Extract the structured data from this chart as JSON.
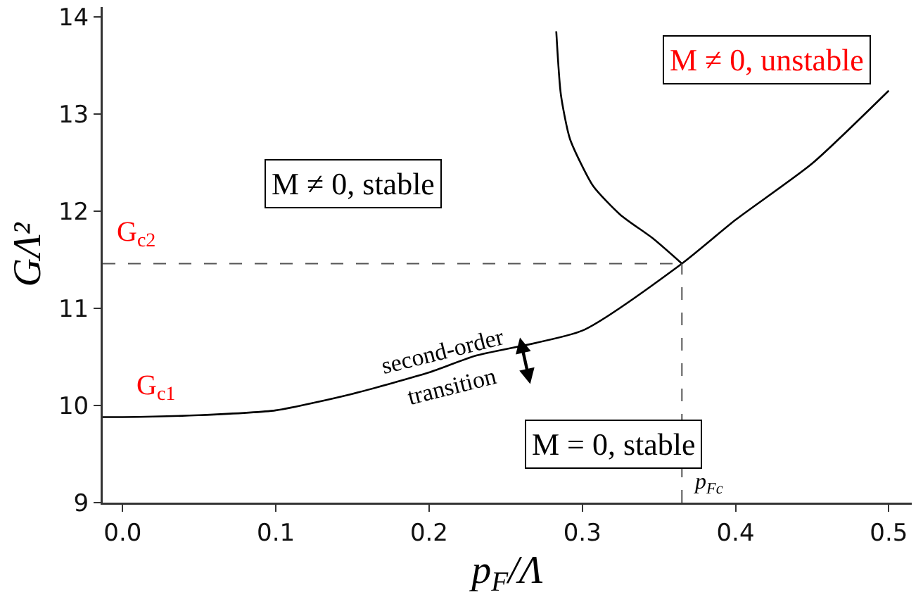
{
  "chart_data": {
    "type": "line",
    "xlabel": "p$_{F}$/Λ",
    "ylabel": "GΛ²",
    "xlim": [
      -0.013,
      0.515
    ],
    "ylim": [
      9,
      14.1
    ],
    "xticks": [
      {
        "value": 0,
        "label": "0.0"
      },
      {
        "value": 0.1,
        "label": "0.1"
      },
      {
        "value": 0.2,
        "label": "0.2"
      },
      {
        "value": 0.3,
        "label": "0.3"
      },
      {
        "value": 0.4,
        "label": "0.4"
      },
      {
        "value": 0.5,
        "label": "0.5"
      }
    ],
    "yticks": [
      9,
      10,
      11,
      12,
      13,
      14
    ],
    "marker": "none",
    "line_style": "solid",
    "series": [
      {
        "color": "#000000",
        "x": [
          -0.013,
          0,
          0.05,
          0.1,
          0.15,
          0.2,
          0.23,
          0.3,
          0.365,
          0.4,
          0.45,
          0.5
        ],
        "values": [
          9.88,
          9.88,
          9.9,
          9.95,
          10.12,
          10.34,
          10.51,
          10.77,
          11.46,
          11.91,
          12.49,
          13.24
        ]
      },
      {
        "color": "#000000",
        "x": [
          0.283,
          0.286,
          0.292,
          0.307,
          0.325,
          0.346,
          0.365
        ],
        "values": [
          13.85,
          13.2,
          12.74,
          12.26,
          11.96,
          11.72,
          11.46
        ]
      }
    ],
    "ref_lines": [
      {
        "axis": "y",
        "value": 11.46,
        "label": "G$_{c2}$",
        "color": "#555555",
        "line_style": "dashed"
      },
      {
        "axis": "x",
        "value": 0.365,
        "label": "p$_{Fc}$",
        "color": "#555555",
        "line_style": "dashed"
      }
    ],
    "annotations": [
      "M ≠ 0, stable",
      "M ≠ 0, unstable",
      "M = 0, stable",
      "second-order\ntransition",
      {
        "text": "G$_{c1}$",
        "x": 0,
        "y": 9.88
      }
    ]
  }
}
